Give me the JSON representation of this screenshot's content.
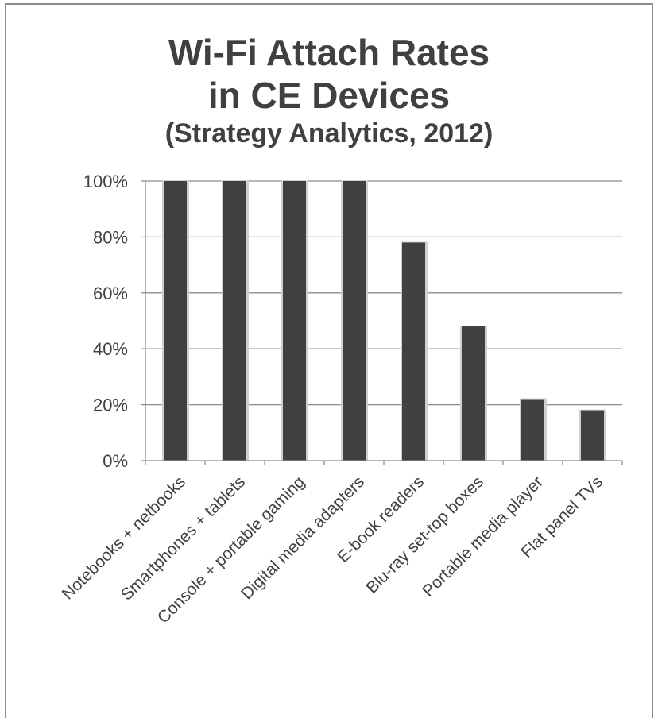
{
  "chart_data": {
    "type": "bar",
    "title_line1": "Wi-Fi Attach Rates",
    "title_line2": "in CE Devices",
    "subtitle": "(Strategy Analytics, 2012)",
    "categories": [
      "Notebooks + netbooks",
      "Smartphones + tablets",
      "Console + portable gaming",
      "Digital media adapters",
      "E-book readers",
      "Blu-ray set-top boxes",
      "Portable media player",
      "Flat panel TVs"
    ],
    "values": [
      100,
      100,
      100,
      100,
      78,
      48,
      22,
      18
    ],
    "yticks": [
      "0%",
      "20%",
      "40%",
      "60%",
      "80%",
      "100%"
    ],
    "ylim": [
      0,
      100
    ],
    "grid": true,
    "legend": "none",
    "colors": {
      "bar": "#404040",
      "bar_shadow": "#d0d0d0",
      "grid": "#8c8c8c",
      "text": "#404040"
    }
  }
}
